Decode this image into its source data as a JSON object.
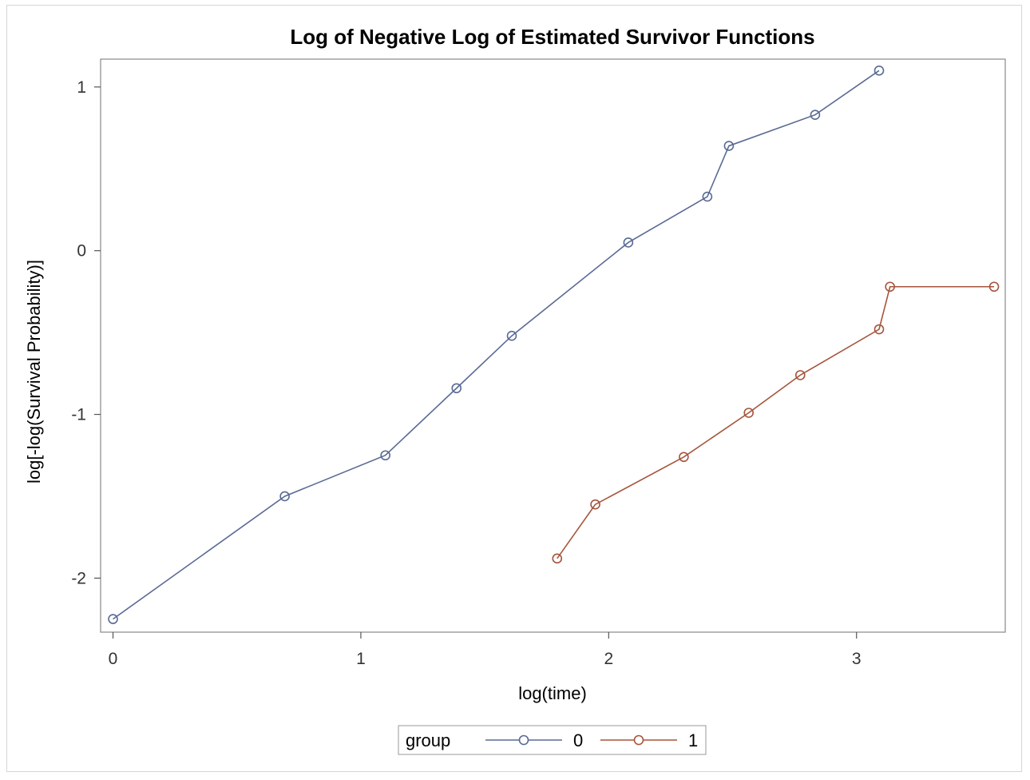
{
  "chart_data": {
    "type": "line",
    "title": "Log of Negative Log of Estimated Survivor Functions",
    "xlabel": "log(time)",
    "ylabel": "log[-log(Survival Probability)]",
    "xlim": [
      -0.05,
      3.6
    ],
    "ylim": [
      -2.33,
      1.17
    ],
    "xticks": [
      0,
      1,
      2,
      3
    ],
    "xtick_labels": [
      "0",
      "1",
      "2",
      "3"
    ],
    "yticks": [
      1,
      0,
      -1,
      -2
    ],
    "ytick_labels": [
      "1",
      "0",
      "-1",
      "-2"
    ],
    "grid": false,
    "legend": {
      "title": "group",
      "placement": "bottom-center",
      "entries": [
        "0",
        "1"
      ]
    },
    "series": [
      {
        "name": "0",
        "color": "#5a6a94",
        "marker": "circle",
        "x": [
          0.0,
          0.693,
          1.099,
          1.386,
          1.609,
          2.079,
          2.398,
          2.485,
          2.833,
          3.091
        ],
        "y": [
          -2.25,
          -1.5,
          -1.25,
          -0.84,
          -0.52,
          0.05,
          0.33,
          0.64,
          0.83,
          1.1
        ]
      },
      {
        "name": "1",
        "color": "#a5553c",
        "marker": "circle",
        "x": [
          1.792,
          1.946,
          2.303,
          2.565,
          2.773,
          3.091,
          3.135,
          3.555
        ],
        "y": [
          -1.88,
          -1.55,
          -1.26,
          -0.99,
          -0.76,
          -0.48,
          -0.22,
          -0.22
        ]
      }
    ]
  }
}
